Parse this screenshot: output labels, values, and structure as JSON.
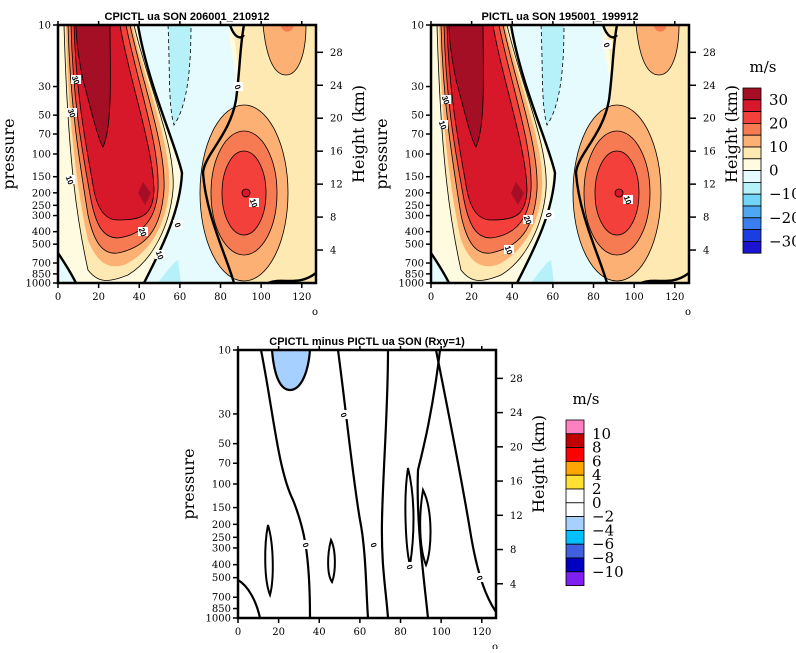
{
  "chart_data": [
    {
      "type": "heatmap",
      "subtype": "filled-contour",
      "title": "CPICTL ua SON 206001_210912",
      "xlabel": "",
      "ylabel": "pressure",
      "ylabel_right": "Height (km)",
      "xlim": [
        0,
        127
      ],
      "ylim": [
        1000,
        10
      ],
      "yscale": "log",
      "xticks": [
        0,
        20,
        40,
        60,
        80,
        100,
        120
      ],
      "yticks": [
        10,
        30,
        50,
        70,
        100,
        150,
        200,
        250,
        300,
        400,
        500,
        700,
        850,
        1000
      ],
      "yticks_right": [
        4,
        8,
        12,
        16,
        20,
        24,
        28
      ],
      "contour_labels": [
        "30",
        "30",
        "10",
        "20",
        "10",
        "0",
        "0",
        "10"
      ],
      "features": [
        {
          "name": "jet core",
          "lat": 42,
          "pressure": 200,
          "value_min": 30
        },
        {
          "name": "jet core",
          "lat": 92,
          "pressure": 200,
          "value_min": 25
        }
      ],
      "colorbar": {
        "unit": "m/s",
        "levels": [
          -30,
          -25,
          -20,
          -15,
          -10,
          -5,
          0,
          5,
          10,
          15,
          20,
          25,
          30
        ],
        "labels": [
          "30",
          "20",
          "10",
          "0",
          "−10",
          "−20",
          "−30"
        ],
        "colors": [
          "#a50f25",
          "#d7182a",
          "#f4403a",
          "#f67a52",
          "#fdb074",
          "#fee9b2",
          "#fffbe0",
          "#e6fbfd",
          "#b6f0f8",
          "#72d5f8",
          "#4ea8f1",
          "#3a7ff0",
          "#1c3ee0",
          "#1a14d0"
        ]
      }
    },
    {
      "type": "heatmap",
      "subtype": "filled-contour",
      "title": "PICTL ua SON 195001_199912",
      "xlabel": "",
      "ylabel": "pressure",
      "ylabel_right": "Height (km)",
      "xlim": [
        0,
        127
      ],
      "ylim": [
        1000,
        10
      ],
      "yscale": "log",
      "xticks": [
        0,
        20,
        40,
        60,
        80,
        100,
        120
      ],
      "yticks": [
        10,
        30,
        50,
        70,
        100,
        150,
        200,
        250,
        300,
        400,
        500,
        700,
        850,
        1000
      ],
      "yticks_right": [
        4,
        8,
        12,
        16,
        20,
        24,
        28
      ],
      "contour_labels": [
        "30",
        "10",
        "20",
        "10",
        "0",
        "0",
        "10"
      ]
    },
    {
      "type": "heatmap",
      "subtype": "filled-contour",
      "title": "CPICTL minus PICTL ua SON (Rxy=1)",
      "xlabel": "",
      "ylabel": "pressure",
      "ylabel_right": "Height (km)",
      "xlim": [
        0,
        127
      ],
      "ylim": [
        1000,
        10
      ],
      "yscale": "log",
      "xticks": [
        0,
        20,
        40,
        60,
        80,
        100,
        120
      ],
      "yticks": [
        10,
        30,
        50,
        70,
        100,
        150,
        200,
        250,
        300,
        400,
        500,
        700,
        850,
        1000
      ],
      "yticks_right": [
        4,
        8,
        12,
        16,
        20,
        24,
        28
      ],
      "contour_labels": [
        "0",
        "0",
        "0",
        "0",
        "0"
      ],
      "colorbar": {
        "unit": "m/s",
        "levels": [
          -10,
          -8,
          -6,
          -4,
          -2,
          0,
          2,
          4,
          6,
          8,
          10
        ],
        "labels": [
          "10",
          "8",
          "6",
          "4",
          "2",
          "0",
          "−2",
          "−4",
          "−6",
          "−8",
          "−10"
        ],
        "colors": [
          "#ff80c0",
          "#c00000",
          "#ff0000",
          "#ffa500",
          "#ffe033",
          "#ffffff",
          "#ffffff",
          "#a6d0ff",
          "#00c0ff",
          "#4060e0",
          "#0000c0",
          "#8020f0"
        ]
      }
    }
  ],
  "corner_mark": "o"
}
